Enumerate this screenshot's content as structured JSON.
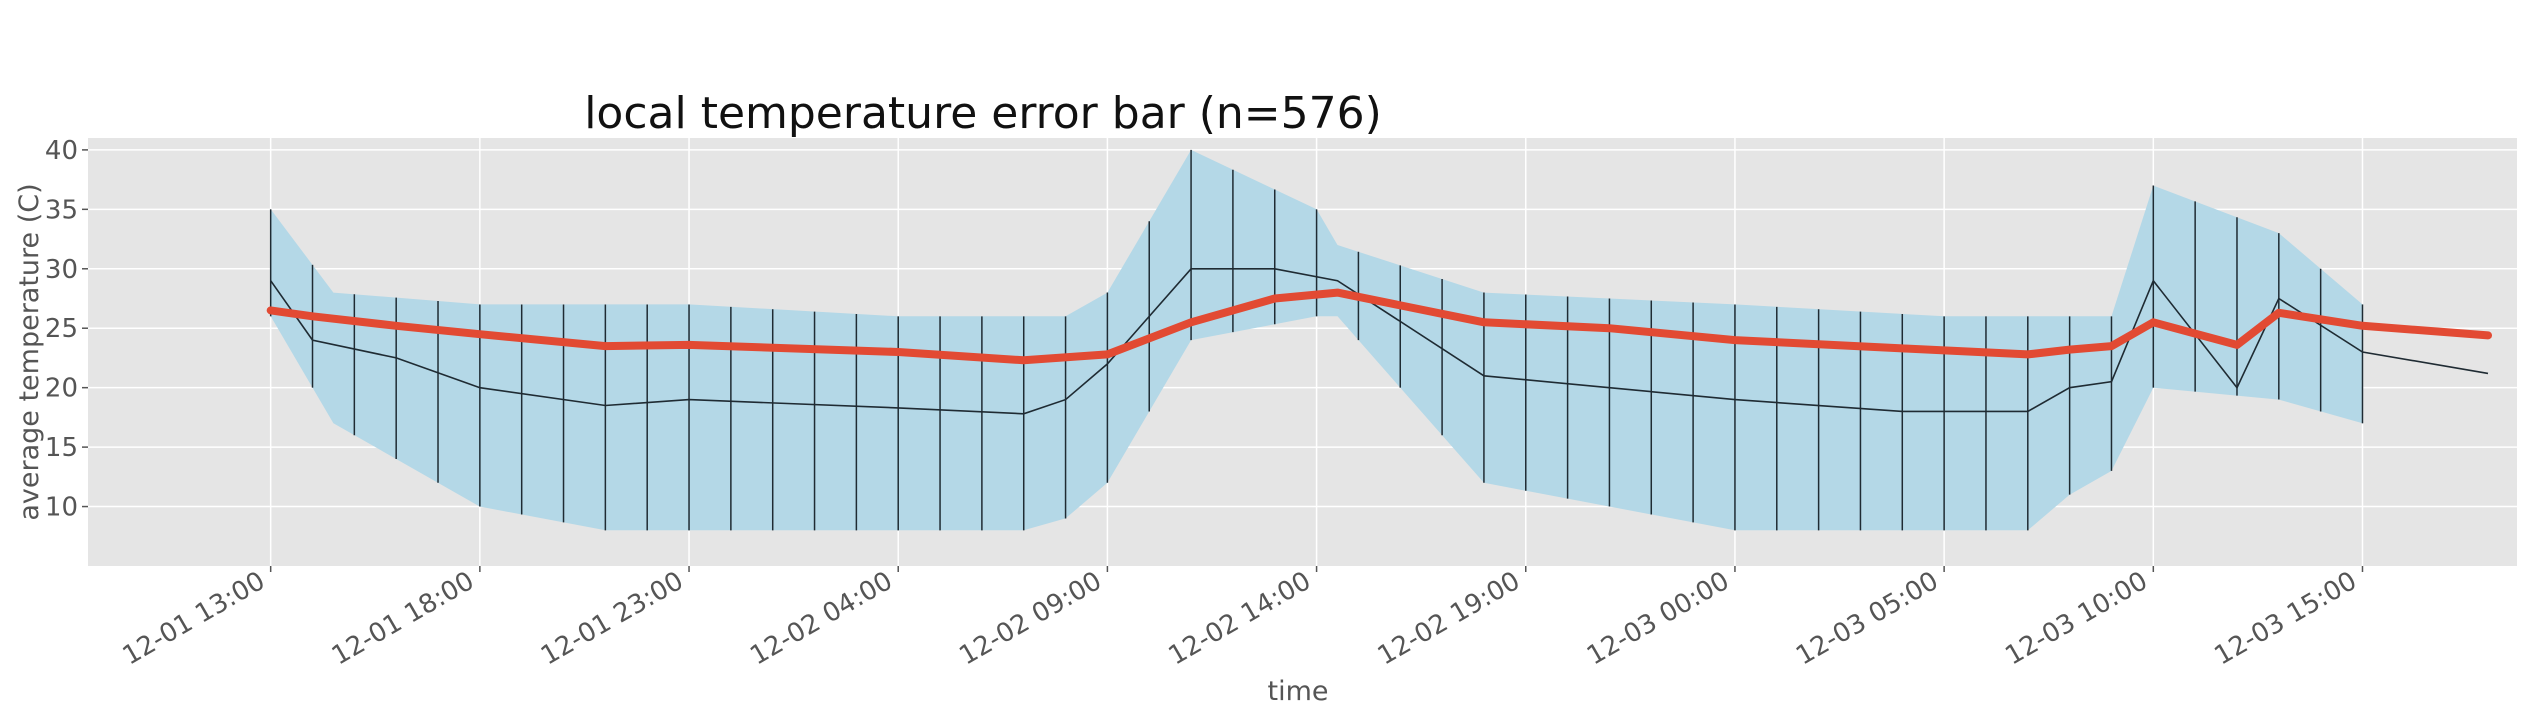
{
  "chart_data": {
    "type": "line",
    "title": "local temperature error bar (n=576)",
    "xlabel": "time",
    "ylabel": "average temperature (C)",
    "x_start": "2023-12-01 11:00",
    "x_end": "2023-12-03 18:00",
    "ylim": [
      5,
      41
    ],
    "yticks": [
      10,
      15,
      20,
      25,
      30,
      35,
      40
    ],
    "xticks": [
      "12-01 13:00",
      "12-01 18:00",
      "12-01 23:00",
      "12-02 04:00",
      "12-02 09:00",
      "12-02 14:00",
      "12-02 19:00",
      "12-03 00:00",
      "12-03 05:00",
      "12-03 10:00",
      "12-03 15:00"
    ],
    "grid": true,
    "colors": {
      "background": "#e5e5e5",
      "grid": "#ffffff",
      "band": "#b4d8e7",
      "mean": "#e24a33",
      "local": "#1f2b33"
    },
    "series": [
      {
        "role": "band",
        "x": [
          "12-01 13:00",
          "12-01 14:30",
          "12-01 18:00",
          "12-01 21:00",
          "12-01 23:00",
          "12-02 04:00",
          "12-02 07:00",
          "12-02 08:00",
          "12-02 09:00",
          "12-02 11:00",
          "12-02 14:00",
          "12-02 14:30",
          "12-02 18:00",
          "12-03 00:00",
          "12-03 05:00",
          "12-03 07:00",
          "12-03 08:00",
          "12-03 09:00",
          "12-03 10:00",
          "12-03 13:00",
          "12-03 15:00"
        ],
        "upper": [
          35,
          28,
          27,
          27,
          27,
          26,
          26,
          26,
          28,
          40,
          35,
          32,
          28,
          27,
          26,
          26,
          26,
          26,
          37,
          33,
          27
        ],
        "lower": [
          26,
          17,
          10,
          8,
          8,
          8,
          8,
          9,
          12,
          24,
          26,
          26,
          12,
          8,
          8,
          8,
          11,
          13,
          20,
          19,
          17
        ]
      },
      {
        "role": "mean",
        "x": [
          "12-01 13:00",
          "12-01 14:00",
          "12-01 16:00",
          "12-01 18:00",
          "12-01 21:00",
          "12-01 23:00",
          "12-02 04:00",
          "12-02 07:00",
          "12-02 09:00",
          "12-02 11:00",
          "12-02 13:00",
          "12-02 14:30",
          "12-02 18:00",
          "12-02 21:00",
          "12-03 00:00",
          "12-03 04:00",
          "12-03 07:00",
          "12-03 08:00",
          "12-03 09:00",
          "12-03 10:00",
          "12-03 12:00",
          "12-03 13:00",
          "12-03 15:00",
          "12-03 18:00"
        ],
        "values": [
          26.5,
          26,
          25.2,
          24.5,
          23.5,
          23.6,
          23,
          22.3,
          22.8,
          25.5,
          27.5,
          28,
          25.5,
          25,
          24,
          23.3,
          22.8,
          23.2,
          23.5,
          25.5,
          23.6,
          26.3,
          25.2,
          24.4
        ]
      },
      {
        "role": "local",
        "x": [
          "12-01 13:00",
          "12-01 14:00",
          "12-01 16:00",
          "12-01 18:00",
          "12-01 21:00",
          "12-01 23:00",
          "12-02 04:00",
          "12-02 07:00",
          "12-02 08:00",
          "12-02 09:00",
          "12-02 11:00",
          "12-02 13:00",
          "12-02 14:30",
          "12-02 18:00",
          "12-02 21:00",
          "12-03 00:00",
          "12-03 04:00",
          "12-03 07:00",
          "12-03 08:00",
          "12-03 09:00",
          "12-03 10:00",
          "12-03 12:00",
          "12-03 13:00",
          "12-03 15:00",
          "12-03 18:00"
        ],
        "values": [
          29,
          24,
          22.5,
          20,
          18.5,
          19,
          18.3,
          17.8,
          19,
          22,
          30,
          30,
          29,
          21,
          20,
          19,
          18,
          18,
          20,
          20.5,
          29,
          20,
          27.5,
          23,
          21.2
        ]
      }
    ]
  }
}
